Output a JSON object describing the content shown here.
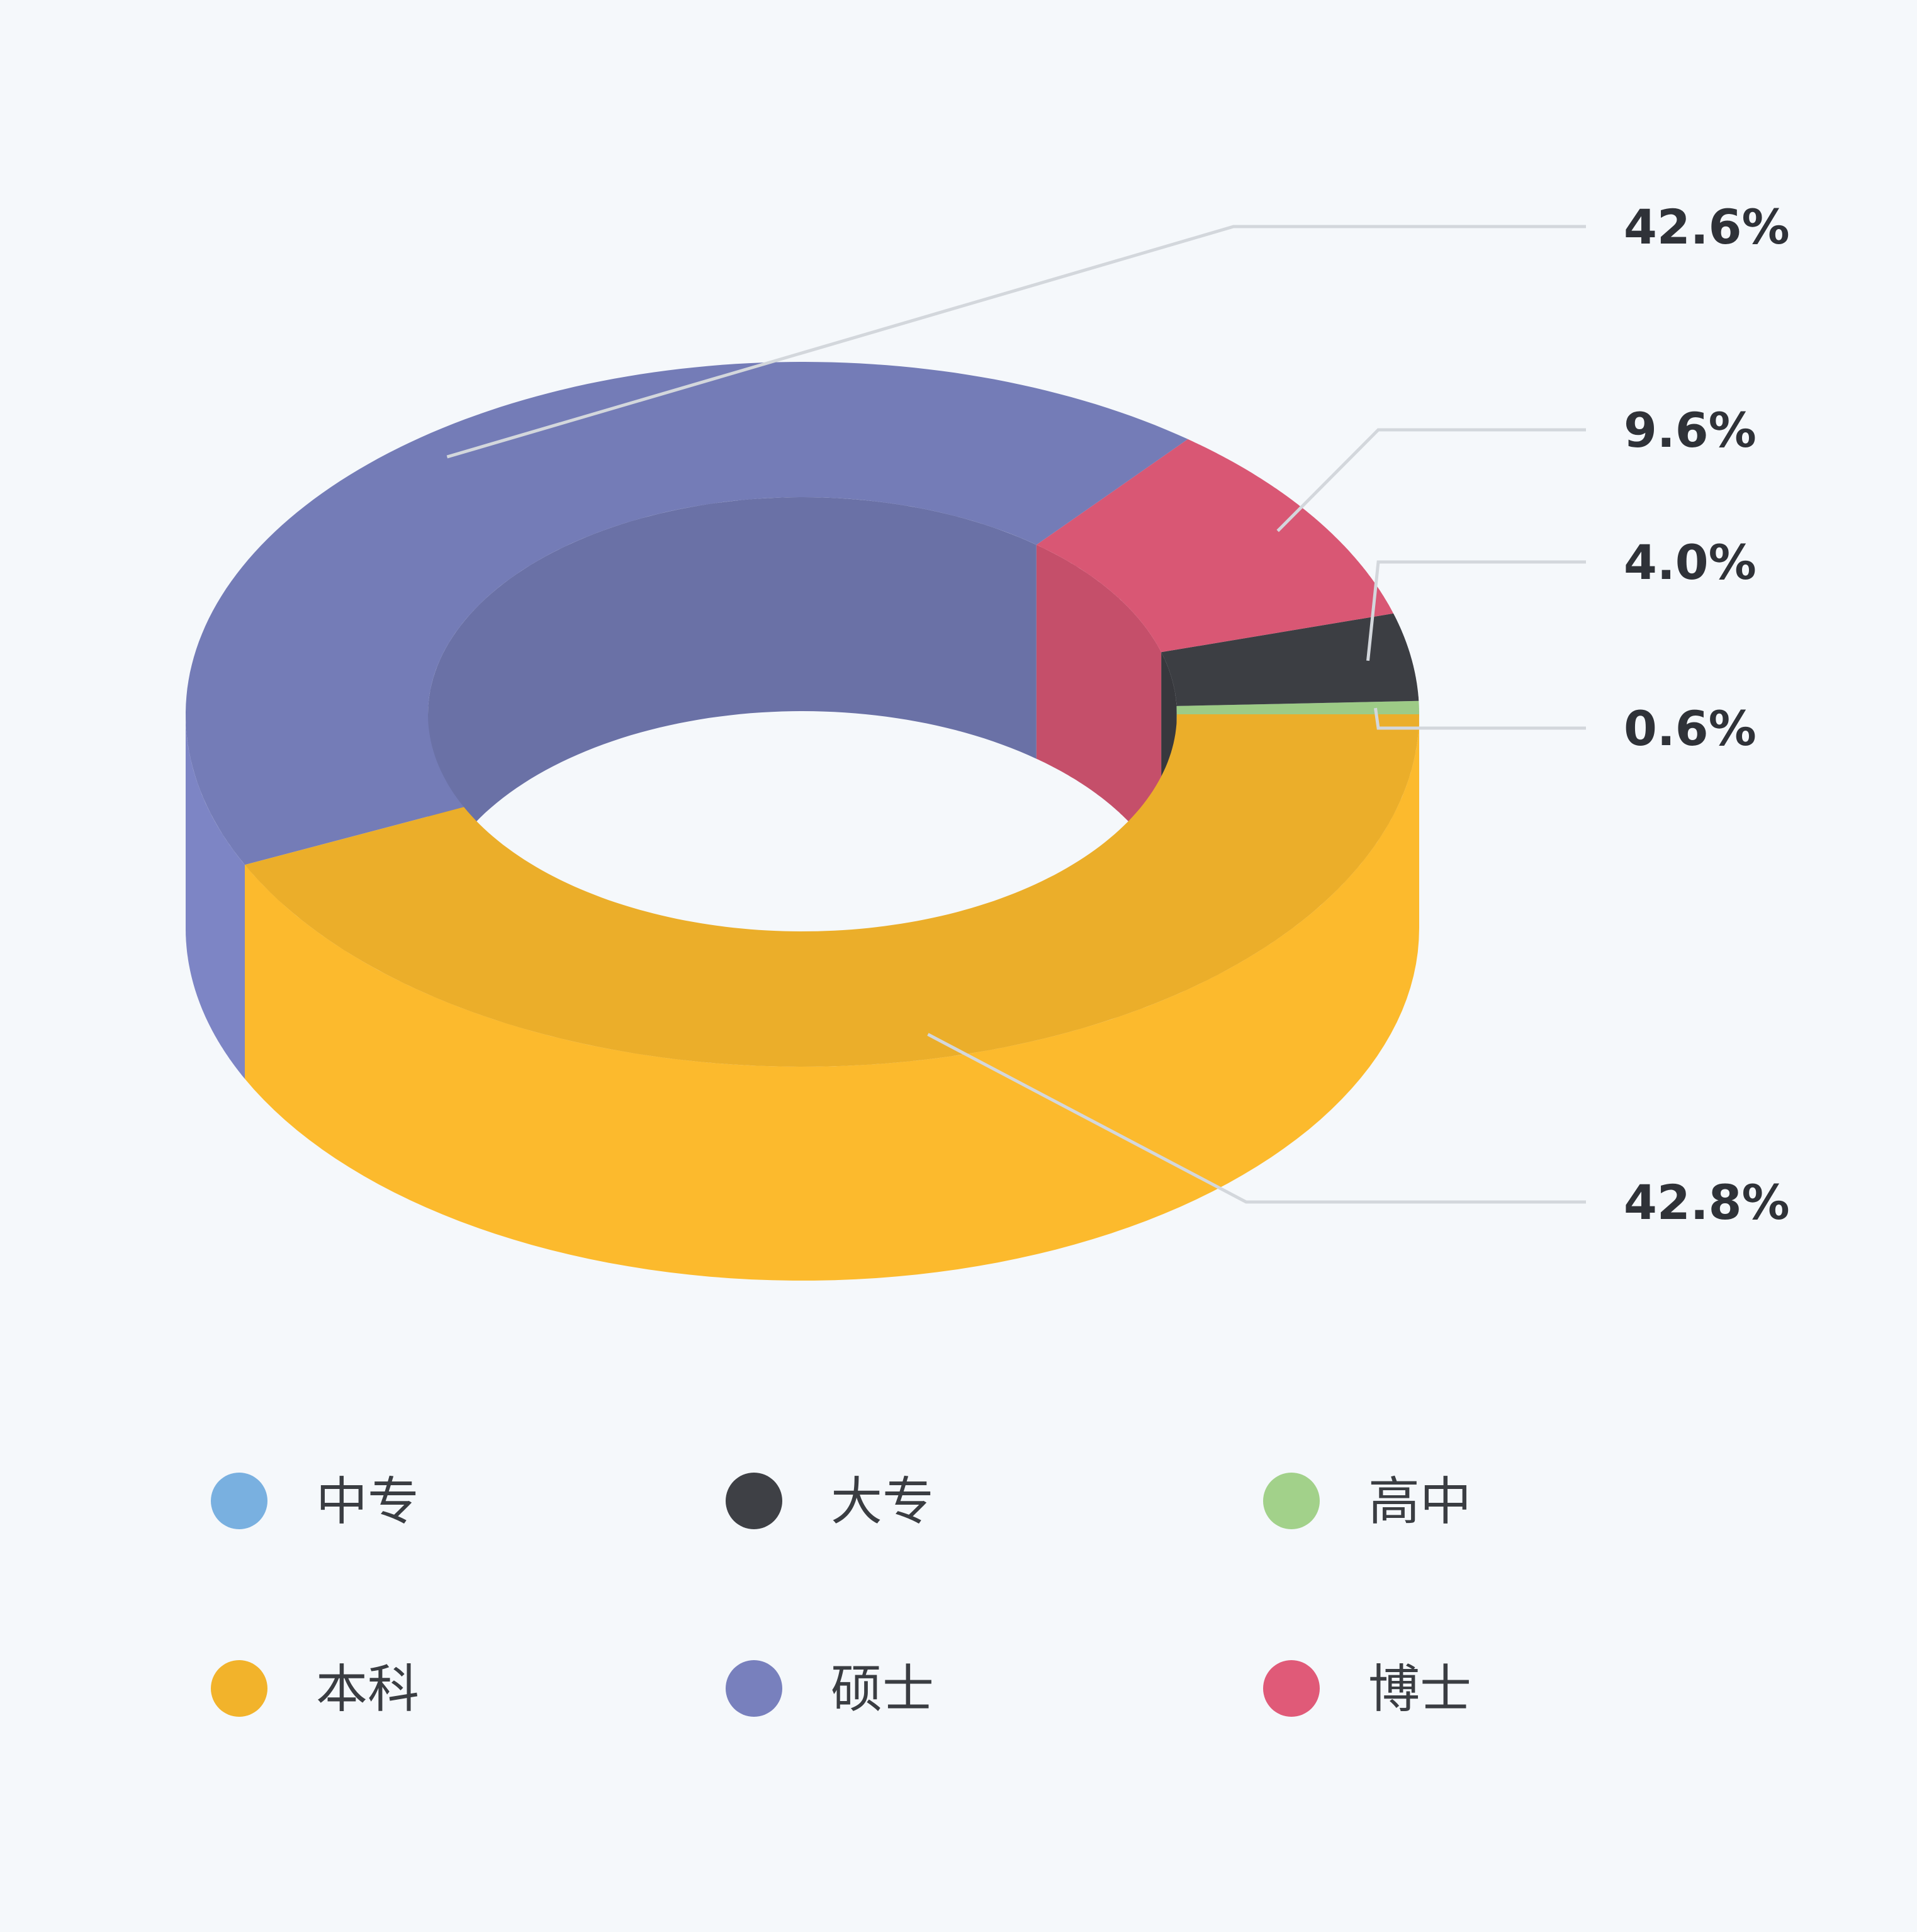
{
  "chart_data": {
    "type": "pie",
    "variant": "3d-donut",
    "categories": [
      "中专",
      "大专",
      "高中",
      "本科",
      "硕士",
      "博士"
    ],
    "values": [
      0.0,
      4.0,
      0.6,
      42.8,
      42.6,
      9.6
    ],
    "labels": [
      "",
      "4.0%",
      "0.6%",
      "42.8%",
      "42.6%",
      "9.6%"
    ],
    "colors": [
      "#79b0e0",
      "#3e4045",
      "#a2d18a",
      "#f2b32b",
      "#7880bd",
      "#e05a78"
    ],
    "legend_position": "bottom",
    "title": ""
  }
}
